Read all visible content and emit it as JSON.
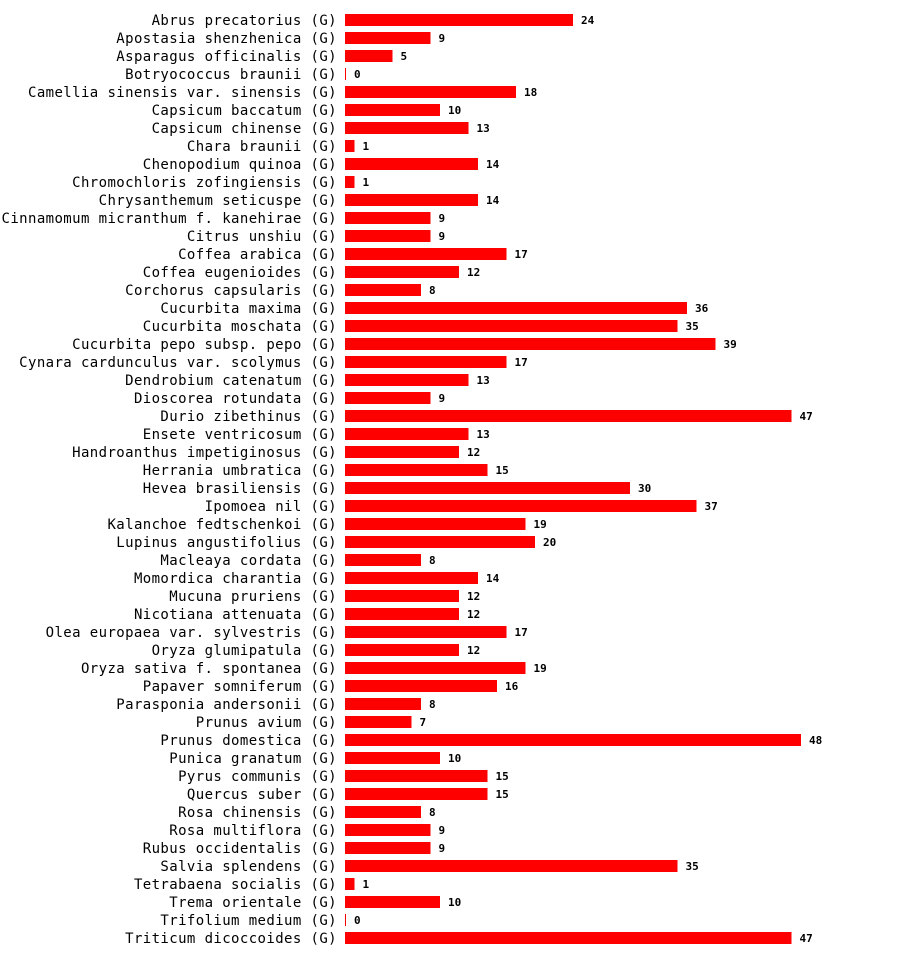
{
  "chart_data": {
    "type": "bar",
    "orientation": "horizontal",
    "title": "",
    "xlabel": "",
    "ylabel": "",
    "bar_color": "#ff0000",
    "xlim": [
      0,
      48
    ],
    "grid": false,
    "categories": [
      "Abrus precatorius (G)",
      "Apostasia shenzhenica (G)",
      "Asparagus officinalis (G)",
      "Botryococcus braunii (G)",
      "Camellia sinensis var. sinensis (G)",
      "Capsicum baccatum (G)",
      "Capsicum chinense (G)",
      "Chara braunii (G)",
      "Chenopodium quinoa (G)",
      "Chromochloris zofingiensis (G)",
      "Chrysanthemum seticuspe (G)",
      "Cinnamomum micranthum f. kanehirae (G)",
      "Citrus unshiu (G)",
      "Coffea arabica (G)",
      "Coffea eugenioides (G)",
      "Corchorus capsularis (G)",
      "Cucurbita maxima (G)",
      "Cucurbita moschata (G)",
      "Cucurbita pepo subsp. pepo (G)",
      "Cynara cardunculus var. scolymus (G)",
      "Dendrobium catenatum (G)",
      "Dioscorea rotundata (G)",
      "Durio zibethinus (G)",
      "Ensete ventricosum (G)",
      "Handroanthus impetiginosus (G)",
      "Herrania umbratica (G)",
      "Hevea brasiliensis (G)",
      "Ipomoea nil (G)",
      "Kalanchoe fedtschenkoi (G)",
      "Lupinus angustifolius (G)",
      "Macleaya cordata (G)",
      "Momordica charantia (G)",
      "Mucuna pruriens (G)",
      "Nicotiana attenuata (G)",
      "Olea europaea var. sylvestris (G)",
      "Oryza glumipatula (G)",
      "Oryza sativa f. spontanea (G)",
      "Papaver somniferum (G)",
      "Parasponia andersonii (G)",
      "Prunus avium (G)",
      "Prunus domestica (G)",
      "Punica granatum (G)",
      "Pyrus communis (G)",
      "Quercus suber (G)",
      "Rosa chinensis (G)",
      "Rosa multiflora (G)",
      "Rubus occidentalis (G)",
      "Salvia splendens (G)",
      "Tetrabaena socialis (G)",
      "Trema orientale (G)",
      "Trifolium medium (G)",
      "Triticum dicoccoides (G)"
    ],
    "values": [
      24,
      9,
      5,
      0,
      18,
      10,
      13,
      1,
      14,
      1,
      14,
      9,
      9,
      17,
      12,
      8,
      36,
      35,
      39,
      17,
      13,
      9,
      47,
      13,
      12,
      15,
      30,
      37,
      19,
      20,
      8,
      14,
      12,
      12,
      17,
      12,
      19,
      16,
      8,
      7,
      48,
      10,
      15,
      15,
      8,
      9,
      9,
      35,
      1,
      10,
      0,
      47
    ]
  }
}
